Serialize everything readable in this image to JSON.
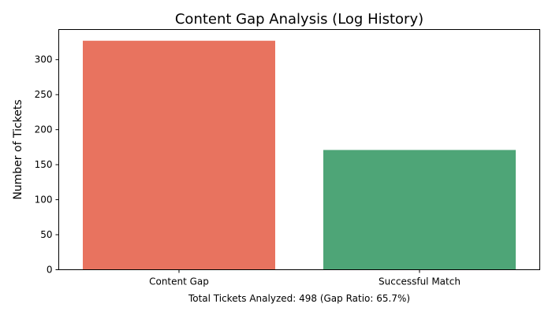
{
  "chart_data": {
    "type": "bar",
    "title": "Content Gap Analysis (Log History)",
    "xlabel": "Total Tickets Analyzed: 498 (Gap Ratio: 65.7%)",
    "ylabel": "Number of Tickets",
    "categories": [
      "Content Gap",
      "Successful Match"
    ],
    "values": [
      327,
      171
    ],
    "colors": [
      "#e8735f",
      "#4ea577"
    ],
    "ylim": [
      0,
      343
    ],
    "yticks": [
      0,
      50,
      100,
      150,
      200,
      250,
      300
    ],
    "grid": false,
    "legend": false
  }
}
